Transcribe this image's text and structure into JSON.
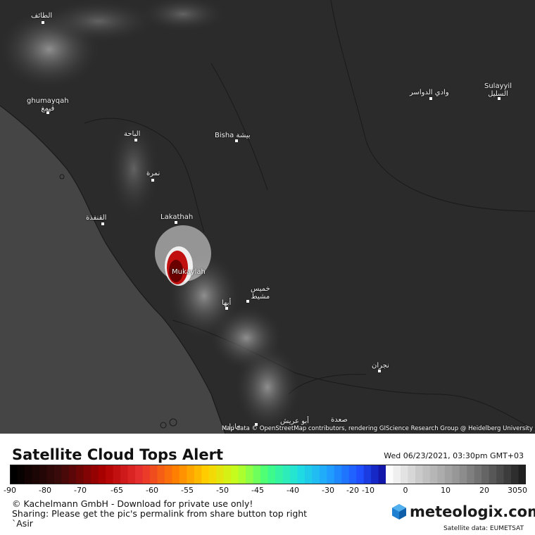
{
  "map": {
    "attribution": "Map data © OpenStreetMap contributors, rendering GIScience Research Group @ Heidelberg University",
    "cities": [
      {
        "id": "taif",
        "label": "الطائف"
      },
      {
        "id": "ghumayqah",
        "label": "ghumayqah\nقيمغ"
      },
      {
        "id": "albaha",
        "label": "الباحة"
      },
      {
        "id": "bisha",
        "label": "Bisha بيشة"
      },
      {
        "id": "namira",
        "label": "نمرة"
      },
      {
        "id": "qunfudhah",
        "label": "القنفذة"
      },
      {
        "id": "lakathah",
        "label": "Lakathah"
      },
      {
        "id": "mukaylah",
        "label": "Mukaylah"
      },
      {
        "id": "khamis",
        "label": "خميس\nمشيط"
      },
      {
        "id": "abha",
        "label": "أبها"
      },
      {
        "id": "wadi",
        "label": "وادي الدواسر"
      },
      {
        "id": "sulayyil",
        "label": "Sulayyil\nالسليل"
      },
      {
        "id": "najran",
        "label": "نجران"
      },
      {
        "id": "saada",
        "label": "صعدة"
      },
      {
        "id": "abuarish",
        "label": "أبو عريش"
      },
      {
        "id": "jazan",
        "label": "جازان"
      }
    ]
  },
  "legend": {
    "title": "Satellite Cloud Tops Alert",
    "timestamp": "Wed 06/23/2021, 03:30pm GMT+03",
    "ticks": [
      "-90",
      "-80",
      "-70",
      "-65",
      "-60",
      "-55",
      "-50",
      "-45",
      "-40",
      "-30",
      "-20",
      "-10",
      "0",
      "10",
      "20",
      "30",
      "50"
    ],
    "colors": {
      "accent_red": "#c00000",
      "accent_blue": "#2040e0"
    }
  },
  "footer": {
    "copyright": "© Kachelmann GmbH - Download for private use only!",
    "sharing": "Sharing: Please get the pic's permalink from share button top right",
    "region": "`Asir",
    "logo": "meteologix.com",
    "satellite_source": "Satellite data: EUMETSAT"
  }
}
